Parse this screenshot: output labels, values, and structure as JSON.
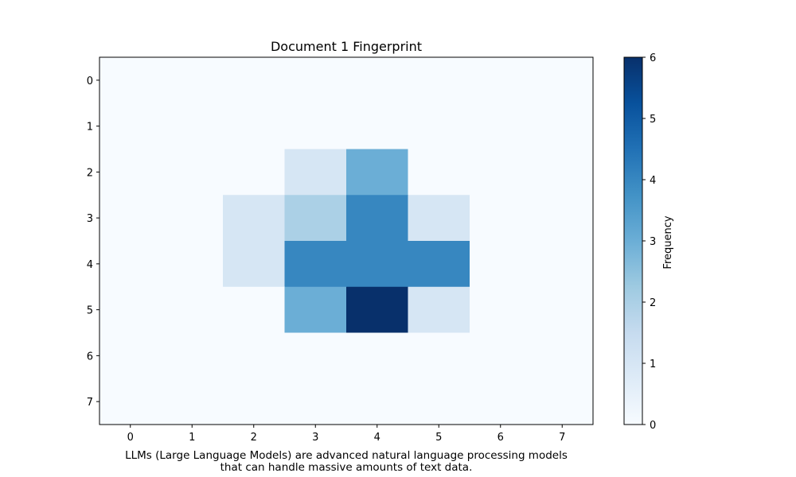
{
  "chart_data": {
    "type": "heatmap",
    "title": "Document 1 Fingerprint",
    "xlabel_lines": [
      "LLMs (Large Language Models) are advanced natural language processing models",
      "that can handle massive amounts of text data."
    ],
    "x_ticks": [
      "0",
      "1",
      "2",
      "3",
      "4",
      "5",
      "6",
      "7"
    ],
    "y_ticks": [
      "0",
      "1",
      "2",
      "3",
      "4",
      "5",
      "6",
      "7"
    ],
    "values": [
      [
        0,
        0,
        0,
        0,
        0,
        0,
        0,
        0
      ],
      [
        0,
        0,
        0,
        0,
        0,
        0,
        0,
        0
      ],
      [
        0,
        0,
        0,
        1,
        3,
        0,
        0,
        0
      ],
      [
        0,
        0,
        1,
        2,
        4,
        1,
        0,
        0
      ],
      [
        0,
        0,
        1,
        4,
        4,
        4,
        0,
        0
      ],
      [
        0,
        0,
        0,
        3,
        6,
        1,
        0,
        0
      ],
      [
        0,
        0,
        0,
        0,
        0,
        0,
        0,
        0
      ],
      [
        0,
        0,
        0,
        0,
        0,
        0,
        0,
        0
      ]
    ],
    "colormap": "Blues",
    "vmin": 0,
    "vmax": 6,
    "colorbar": {
      "label": "Frequency",
      "ticks": [
        "0",
        "1",
        "2",
        "3",
        "4",
        "5",
        "6"
      ]
    },
    "grid": false
  }
}
